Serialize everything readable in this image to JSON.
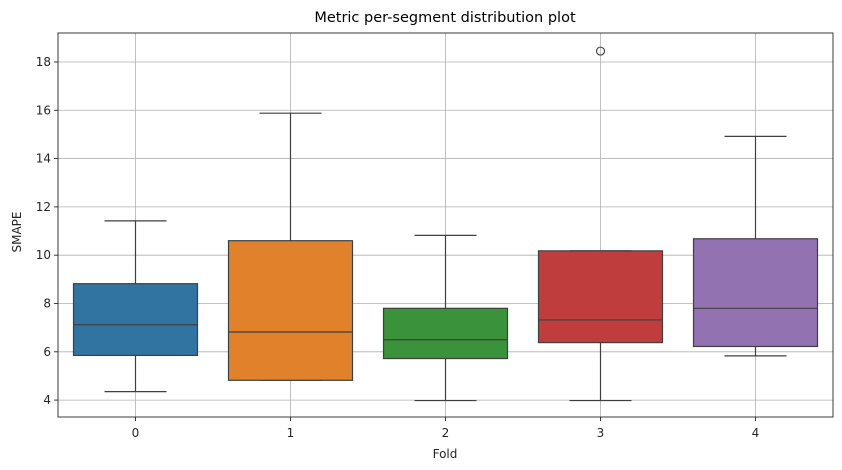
{
  "chart_data": {
    "type": "box",
    "title": "Metric per-segment distribution plot",
    "xlabel": "Fold",
    "ylabel": "SMAPE",
    "categories": [
      "0",
      "1",
      "2",
      "3",
      "4"
    ],
    "ylim": [
      3.3,
      19.2
    ],
    "yticks": [
      4,
      6,
      8,
      10,
      12,
      14,
      16,
      18
    ],
    "grid": true,
    "boxes": [
      {
        "name": "0",
        "color": "#3274a1",
        "whisker_low": 4.35,
        "q1": 5.85,
        "median": 7.12,
        "q3": 8.82,
        "whisker_high": 11.42,
        "outliers": []
      },
      {
        "name": "1",
        "color": "#e1812c",
        "whisker_low": 4.82,
        "q1": 4.82,
        "median": 6.82,
        "q3": 10.6,
        "whisker_high": 15.88,
        "outliers": []
      },
      {
        "name": "2",
        "color": "#3a923a",
        "whisker_low": 3.98,
        "q1": 5.72,
        "median": 6.5,
        "q3": 7.8,
        "whisker_high": 10.82,
        "outliers": []
      },
      {
        "name": "3",
        "color": "#c03d3e",
        "whisker_low": 3.98,
        "q1": 6.38,
        "median": 7.32,
        "q3": 10.18,
        "whisker_high": 10.18,
        "outliers": [
          18.45
        ]
      },
      {
        "name": "4",
        "color": "#9372b2",
        "whisker_low": 5.83,
        "q1": 6.22,
        "median": 7.8,
        "q3": 10.68,
        "whisker_high": 14.92,
        "outliers": []
      }
    ]
  }
}
